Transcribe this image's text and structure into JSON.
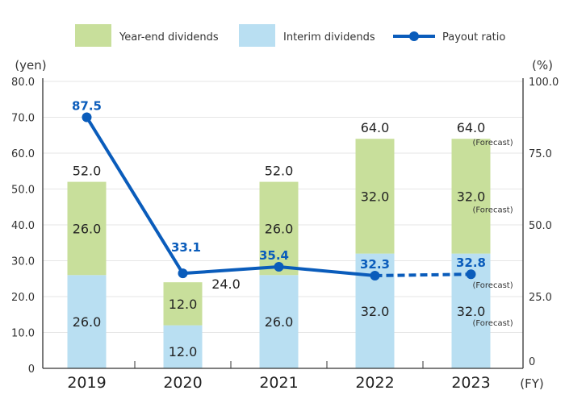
{
  "chart_data": {
    "type": "bar",
    "subtype": "stacked-bar-with-line",
    "title": "",
    "categories": [
      "2019",
      "2020",
      "2021",
      "2022",
      "2023"
    ],
    "xlabel": "(FY)",
    "ylabel_left": "(yen)",
    "ylabel_right": "(%)",
    "ylim_left": [
      0,
      80
    ],
    "ylim_right": [
      0,
      100
    ],
    "left_ticks": [
      "0",
      "10.0",
      "20.0",
      "30.0",
      "40.0",
      "50.0",
      "60.0",
      "70.0",
      "80.0"
    ],
    "right_ticks": [
      "0",
      "25.0",
      "50.0",
      "75.0",
      "100.0"
    ],
    "grid": true,
    "legend_position": "top",
    "series": [
      {
        "name": "Interim dividends",
        "type": "bar",
        "axis": "left",
        "color": "#b9dff2",
        "values": [
          26.0,
          12.0,
          26.0,
          32.0,
          32.0
        ],
        "labels": [
          "26.0",
          "12.0",
          "26.0",
          "32.0",
          "32.0"
        ]
      },
      {
        "name": "Year-end dividends",
        "type": "bar",
        "axis": "left",
        "color": "#c8df9b",
        "values": [
          26.0,
          12.0,
          26.0,
          32.0,
          32.0
        ],
        "labels": [
          "26.0",
          "12.0",
          "26.0",
          "32.0",
          "32.0"
        ]
      },
      {
        "name": "Payout ratio",
        "type": "line",
        "axis": "right",
        "color": "#0a5cbb",
        "values": [
          87.5,
          33.1,
          35.4,
          32.3,
          32.8
        ],
        "labels": [
          "87.5",
          "33.1",
          "35.4",
          "32.3",
          "32.8"
        ],
        "dashed_last_segment": true
      }
    ],
    "totals": [
      52.0,
      24.0,
      52.0,
      64.0,
      64.0
    ],
    "total_labels": [
      "52.0",
      "24.0",
      "52.0",
      "64.0",
      "64.0"
    ],
    "forecast_note": "(Forecast)",
    "forecast_index": 4
  }
}
